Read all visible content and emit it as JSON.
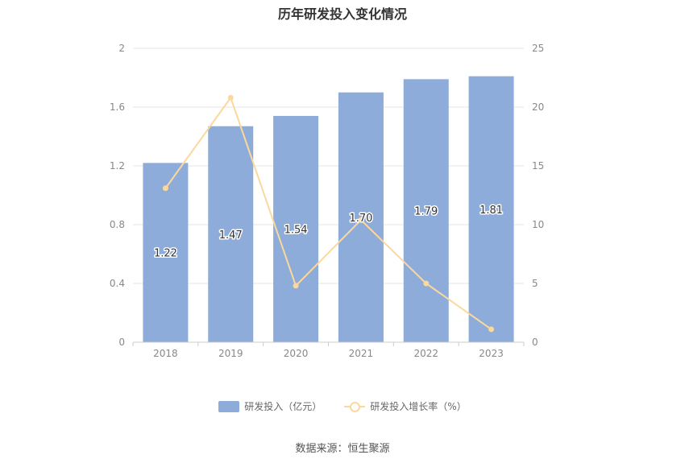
{
  "title": "历年研发投入变化情况",
  "source": "数据来源：恒生聚源",
  "colors": {
    "bar": "#8eacd9",
    "line": "#fbd89b",
    "grid": "#e6e6e6",
    "axis_text": "#888888",
    "label_text": "#333333"
  },
  "chart_data": {
    "type": "bar",
    "categories": [
      "2018",
      "2019",
      "2020",
      "2021",
      "2022",
      "2023"
    ],
    "series": [
      {
        "name": "研发投入（亿元）",
        "type": "bar",
        "axis": "left",
        "values": [
          1.22,
          1.47,
          1.54,
          1.7,
          1.79,
          1.81
        ],
        "labels": [
          "1.22",
          "1.47",
          "1.54",
          "1.70",
          "1.79",
          "1.81"
        ]
      },
      {
        "name": "研发投入增长率（%）",
        "type": "line",
        "axis": "right",
        "values": [
          13.1,
          20.8,
          4.8,
          10.4,
          5.0,
          1.1
        ]
      }
    ],
    "y_left": {
      "min": 0,
      "max": 2,
      "ticks": [
        "0",
        "0.4",
        "0.8",
        "1.2",
        "1.6",
        "2"
      ]
    },
    "y_right": {
      "min": 0,
      "max": 25,
      "ticks": [
        "0",
        "5",
        "10",
        "15",
        "20",
        "25"
      ]
    },
    "grid": true,
    "legend_position": "bottom"
  }
}
